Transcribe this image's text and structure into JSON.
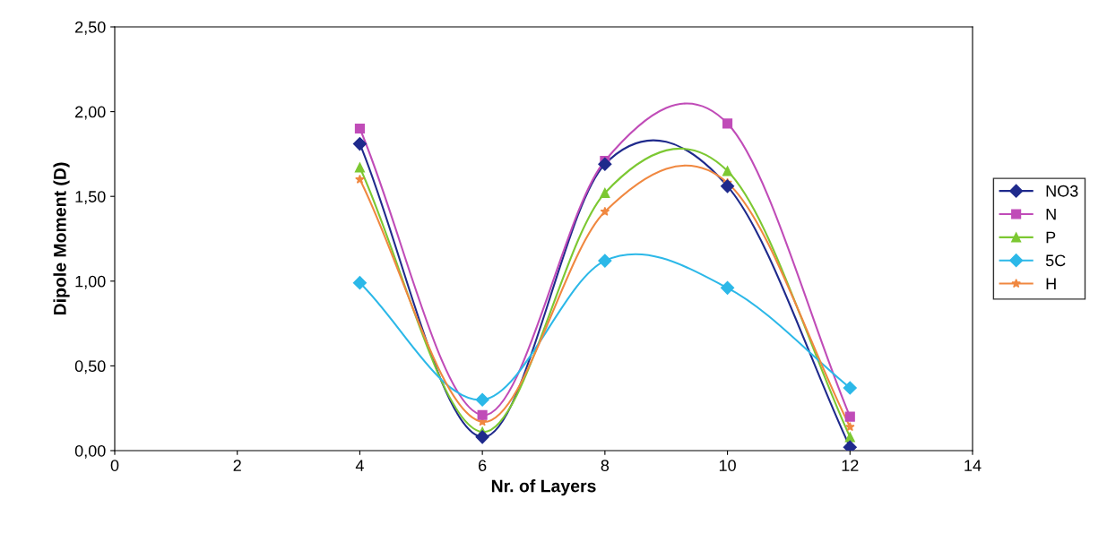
{
  "chart_data": {
    "type": "line",
    "xlabel": "Nr. of Layers",
    "ylabel": "Dipole Moment (D)",
    "x": [
      4,
      6,
      8,
      10,
      12
    ],
    "series": [
      {
        "name": "NO3",
        "color": "#1f2a8c",
        "marker": "diamond",
        "values": [
          1.81,
          0.08,
          1.69,
          1.56,
          0.02
        ]
      },
      {
        "name": "N",
        "color": "#c04cb8",
        "marker": "square",
        "values": [
          1.9,
          0.21,
          1.71,
          1.93,
          0.2
        ]
      },
      {
        "name": "P",
        "color": "#7cc832",
        "marker": "triangle",
        "values": [
          1.67,
          0.11,
          1.52,
          1.65,
          0.08
        ]
      },
      {
        "name": "5C",
        "color": "#2cb8e8",
        "marker": "diamond",
        "values": [
          0.99,
          0.3,
          1.12,
          0.96,
          0.37
        ]
      },
      {
        "name": "H",
        "color": "#f08840",
        "marker": "star",
        "values": [
          1.6,
          0.17,
          1.41,
          1.58,
          0.14
        ]
      }
    ],
    "xlim": [
      0,
      14
    ],
    "xticks": [
      0,
      2,
      4,
      6,
      8,
      10,
      12,
      14
    ],
    "ylim": [
      0,
      2.5
    ],
    "yticks": [
      {
        "value": 0,
        "label": "0,00"
      },
      {
        "value": 0.5,
        "label": "0,50"
      },
      {
        "value": 1.0,
        "label": "1,00"
      },
      {
        "value": 1.5,
        "label": "1,50"
      },
      {
        "value": 2.0,
        "label": "2,00"
      },
      {
        "value": 2.5,
        "label": "2,50"
      }
    ],
    "grid": false,
    "legend": "right",
    "line_style": "solid"
  }
}
